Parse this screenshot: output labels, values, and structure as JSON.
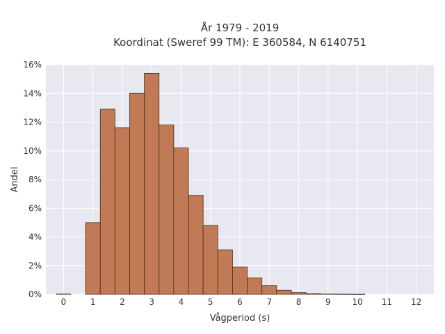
{
  "chart_data": {
    "type": "bar",
    "title_lines": [
      "År 1979 - 2019",
      "Koordinat (Sweref 99 TM): E 360584, N 6140751"
    ],
    "xlabel": "Vågperiod (s)",
    "ylabel": "Andel",
    "bin_width": 0.5,
    "x": [
      0,
      0.5,
      1,
      1.5,
      2,
      2.5,
      3,
      3.5,
      4,
      4.5,
      5,
      5.5,
      6,
      6.5,
      7,
      7.5,
      8,
      8.5,
      9,
      9.5,
      10,
      10.5,
      11,
      11.5,
      12
    ],
    "values": [
      0.0003,
      0,
      0.05,
      0.129,
      0.116,
      0.14,
      0.154,
      0.118,
      0.102,
      0.069,
      0.048,
      0.031,
      0.019,
      0.0115,
      0.006,
      0.0028,
      0.0012,
      0.0005,
      0.0003,
      0.0002,
      0.0001,
      0,
      0,
      0,
      0
    ],
    "xticks": [
      0,
      1,
      2,
      3,
      4,
      5,
      6,
      7,
      8,
      9,
      10,
      11,
      12
    ],
    "yticks": [
      0,
      0.02,
      0.04,
      0.06,
      0.08,
      0.1,
      0.12,
      0.14,
      0.16
    ],
    "ytick_labels": [
      "0%",
      "2%",
      "4%",
      "6%",
      "8%",
      "10%",
      "12%",
      "14%",
      "16%"
    ],
    "xlim": [
      -0.6,
      12.6
    ],
    "ylim": [
      0,
      0.16
    ],
    "grid": true,
    "colors": {
      "bar_fill": "#c07a55",
      "bar_edge": "#4a2a18",
      "plot_bg": "#e8e8f0",
      "grid": "#ffffff"
    }
  }
}
